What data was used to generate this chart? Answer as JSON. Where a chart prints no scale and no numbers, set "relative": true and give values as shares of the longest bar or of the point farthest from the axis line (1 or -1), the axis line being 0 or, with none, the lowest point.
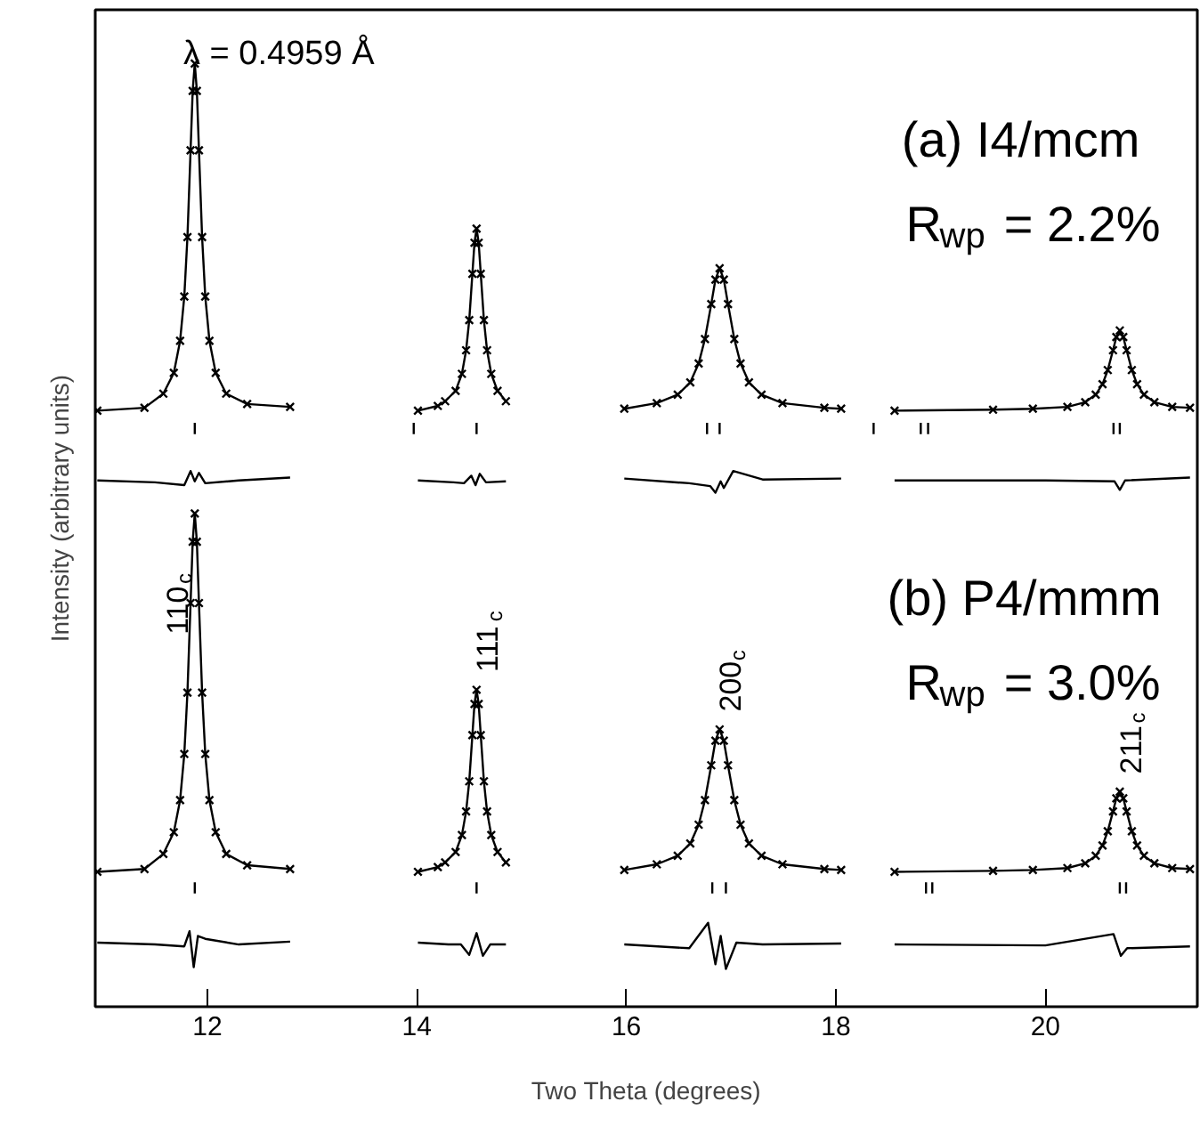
{
  "chart_data": {
    "type": "line",
    "relative": true,
    "xlabel": "Two Theta (degrees)",
    "ylabel": "Intensity (arbitrary units)",
    "xlim": [
      10.93,
      21.45
    ],
    "xticks": [
      12,
      14,
      16,
      18,
      20
    ],
    "tick_labels": "x",
    "annotations": [
      "λ = 0.4959 Å",
      "(a) I4/mcm",
      "R$_{wp}$ = 2.2%",
      "(b) P4/mmm",
      "R$_{wp}$ = 3.0%",
      {
        "text": "110$_{c}$",
        "x": 11.88,
        "y": 0.523
      },
      {
        "text": "111$_{c}$",
        "x": 14.57,
        "y": 0.336
      },
      {
        "text": "200$_{c}$",
        "x": 16.89,
        "y": 0.294
      },
      {
        "text": "211$_{c}$",
        "x": 20.71,
        "y": 0.228
      }
    ],
    "series": [
      {
        "type": "scatter",
        "marker": "cross",
        "color": "#000000",
        "x": [
          10.95,
          11.4,
          11.58,
          11.68,
          11.74,
          11.78,
          11.81,
          11.84,
          11.86,
          11.88,
          11.9,
          11.92,
          11.95,
          11.98,
          12.02,
          12.08,
          12.18,
          12.38,
          12.79,
          13.4,
          14.01,
          14.2,
          14.27,
          14.37,
          14.43,
          14.47,
          14.5,
          14.53,
          14.55,
          14.57,
          14.59,
          14.61,
          14.64,
          14.67,
          14.71,
          14.77,
          14.85,
          15.4,
          15.98,
          16.29,
          16.49,
          16.61,
          16.69,
          16.75,
          16.81,
          16.85,
          16.89,
          16.93,
          16.97,
          17.03,
          17.09,
          17.17,
          17.29,
          17.49,
          17.89,
          18.05,
          18.3,
          18.56,
          19.5,
          19.88,
          20.21,
          20.38,
          20.48,
          20.545,
          20.595,
          20.645,
          20.677,
          20.71,
          20.743,
          20.775,
          20.825,
          20.875,
          20.94,
          21.04,
          21.21,
          21.38
        ],
        "values": [
          0.632,
          0.635,
          0.65,
          0.672,
          0.706,
          0.753,
          0.816,
          0.908,
          0.971,
          1.0,
          0.971,
          0.908,
          0.816,
          0.753,
          0.706,
          0.672,
          0.65,
          0.639,
          0.636,
          null,
          0.632,
          0.637,
          0.642,
          0.653,
          0.671,
          0.696,
          0.728,
          0.777,
          0.81,
          0.825,
          0.81,
          0.777,
          0.728,
          0.696,
          0.671,
          0.653,
          0.642,
          null,
          0.634,
          0.64,
          0.649,
          0.662,
          0.682,
          0.708,
          0.745,
          0.771,
          0.783,
          0.771,
          0.745,
          0.708,
          0.682,
          0.662,
          0.649,
          0.64,
          0.635,
          0.634,
          null,
          0.632,
          0.633,
          0.634,
          0.636,
          0.641,
          0.649,
          0.66,
          0.675,
          0.696,
          0.71,
          0.717,
          0.71,
          0.696,
          0.675,
          0.66,
          0.649,
          0.641,
          0.636,
          0.635
        ]
      },
      {
        "type": "line",
        "color": "#000000",
        "x": [
          10.95,
          11.4,
          11.58,
          11.68,
          11.74,
          11.78,
          11.81,
          11.84,
          11.86,
          11.88,
          11.9,
          11.92,
          11.95,
          11.98,
          12.02,
          12.08,
          12.18,
          12.38,
          12.79,
          13.4,
          14.01,
          14.2,
          14.27,
          14.37,
          14.43,
          14.47,
          14.5,
          14.53,
          14.55,
          14.57,
          14.59,
          14.61,
          14.64,
          14.67,
          14.71,
          14.77,
          14.85,
          15.4,
          15.98,
          16.29,
          16.49,
          16.61,
          16.69,
          16.75,
          16.81,
          16.85,
          16.89,
          16.93,
          16.97,
          17.03,
          17.09,
          17.17,
          17.29,
          17.49,
          17.89,
          18.05,
          18.3,
          18.56,
          19.5,
          19.88,
          20.21,
          20.38,
          20.48,
          20.545,
          20.595,
          20.645,
          20.677,
          20.71,
          20.743,
          20.775,
          20.825,
          20.875,
          20.94,
          21.04,
          21.21,
          21.38
        ],
        "values": [
          0.632,
          0.635,
          0.65,
          0.672,
          0.706,
          0.753,
          0.816,
          0.908,
          0.971,
          1.0,
          0.971,
          0.908,
          0.816,
          0.753,
          0.706,
          0.672,
          0.65,
          0.639,
          0.636,
          null,
          0.632,
          0.637,
          0.642,
          0.653,
          0.671,
          0.696,
          0.728,
          0.777,
          0.81,
          0.825,
          0.81,
          0.777,
          0.728,
          0.696,
          0.671,
          0.653,
          0.642,
          null,
          0.634,
          0.64,
          0.649,
          0.662,
          0.682,
          0.708,
          0.745,
          0.771,
          0.783,
          0.771,
          0.745,
          0.708,
          0.682,
          0.662,
          0.649,
          0.64,
          0.635,
          0.634,
          null,
          0.632,
          0.633,
          0.634,
          0.636,
          0.641,
          0.649,
          0.66,
          0.675,
          0.696,
          0.71,
          0.717,
          0.71,
          0.696,
          0.675,
          0.66,
          0.649,
          0.641,
          0.636,
          0.635
        ]
      },
      {
        "color": "#000000",
        "x": [
          11.88,
          11.88,
          null,
          13.97,
          13.97,
          null,
          14.57,
          14.57,
          null,
          16.77,
          16.77,
          null,
          16.89,
          16.89,
          null,
          18.36,
          18.36,
          null,
          18.81,
          18.81,
          null,
          18.88,
          18.88,
          null,
          20.65,
          20.65,
          null,
          20.71,
          20.71
        ],
        "values": [
          0.607,
          0.619,
          null,
          0.607,
          0.619,
          null,
          0.607,
          0.619,
          null,
          0.607,
          0.619,
          null,
          0.607,
          0.619,
          null,
          0.607,
          0.619,
          null,
          0.607,
          0.619,
          null,
          0.607,
          0.619,
          null,
          0.607,
          0.619,
          null,
          0.607,
          0.619
        ]
      },
      {
        "color": "#000000",
        "x": [
          10.95,
          11.5,
          11.78,
          11.84,
          11.88,
          11.92,
          11.98,
          12.3,
          12.79,
          13.4,
          14.01,
          14.35,
          14.45,
          14.52,
          14.56,
          14.6,
          14.66,
          14.85,
          15.4,
          15.98,
          16.6,
          16.8,
          16.85,
          16.9,
          16.93,
          17.02,
          17.3,
          18.05,
          18.3,
          18.56,
          20.0,
          20.66,
          20.71,
          20.76,
          21.38
        ],
        "values": [
          0.558,
          0.556,
          0.553,
          0.568,
          0.557,
          0.566,
          0.555,
          0.558,
          0.561,
          null,
          0.558,
          0.556,
          0.555,
          0.563,
          0.553,
          0.565,
          0.556,
          0.557,
          null,
          0.56,
          0.555,
          0.552,
          0.545,
          0.557,
          0.55,
          0.568,
          0.559,
          0.56,
          null,
          0.558,
          0.558,
          0.557,
          0.548,
          0.558,
          0.561
        ]
      },
      {
        "type": "scatter",
        "marker": "cross",
        "color": "#000000",
        "x": [
          10.95,
          11.4,
          11.58,
          11.68,
          11.74,
          11.78,
          11.81,
          11.84,
          11.86,
          11.88,
          11.9,
          11.92,
          11.95,
          11.98,
          12.02,
          12.08,
          12.18,
          12.38,
          12.79,
          13.4,
          14.01,
          14.2,
          14.27,
          14.37,
          14.43,
          14.47,
          14.5,
          14.53,
          14.55,
          14.57,
          14.59,
          14.61,
          14.64,
          14.67,
          14.71,
          14.77,
          14.85,
          15.4,
          15.98,
          16.29,
          16.49,
          16.61,
          16.69,
          16.75,
          16.81,
          16.85,
          16.89,
          16.93,
          16.97,
          17.03,
          17.09,
          17.17,
          17.29,
          17.49,
          17.89,
          18.05,
          18.3,
          18.56,
          19.5,
          19.88,
          20.21,
          20.38,
          20.48,
          20.545,
          20.595,
          20.645,
          20.677,
          20.71,
          20.743,
          20.775,
          20.825,
          20.875,
          20.94,
          21.04,
          21.21,
          21.38
        ],
        "values": [
          0.143,
          0.146,
          0.162,
          0.185,
          0.219,
          0.268,
          0.333,
          0.428,
          0.493,
          0.523,
          0.493,
          0.428,
          0.333,
          0.268,
          0.219,
          0.185,
          0.162,
          0.15,
          0.146,
          null,
          0.143,
          0.148,
          0.153,
          0.164,
          0.182,
          0.207,
          0.239,
          0.288,
          0.321,
          0.336,
          0.321,
          0.288,
          0.239,
          0.207,
          0.182,
          0.164,
          0.153,
          null,
          0.145,
          0.151,
          0.16,
          0.173,
          0.193,
          0.219,
          0.256,
          0.282,
          0.294,
          0.282,
          0.256,
          0.219,
          0.193,
          0.173,
          0.16,
          0.151,
          0.146,
          0.145,
          null,
          0.143,
          0.144,
          0.145,
          0.147,
          0.152,
          0.16,
          0.171,
          0.186,
          0.207,
          0.221,
          0.228,
          0.221,
          0.207,
          0.186,
          0.171,
          0.16,
          0.152,
          0.147,
          0.146
        ]
      },
      {
        "type": "line",
        "color": "#000000",
        "x": [
          10.95,
          11.4,
          11.58,
          11.68,
          11.74,
          11.78,
          11.81,
          11.84,
          11.86,
          11.88,
          11.9,
          11.92,
          11.95,
          11.98,
          12.02,
          12.08,
          12.18,
          12.38,
          12.79,
          13.4,
          14.01,
          14.2,
          14.27,
          14.37,
          14.43,
          14.47,
          14.5,
          14.53,
          14.55,
          14.57,
          14.59,
          14.61,
          14.64,
          14.67,
          14.71,
          14.77,
          14.85,
          15.4,
          15.98,
          16.29,
          16.49,
          16.61,
          16.69,
          16.75,
          16.81,
          16.85,
          16.89,
          16.93,
          16.97,
          17.03,
          17.09,
          17.17,
          17.29,
          17.49,
          17.89,
          18.05,
          18.3,
          18.56,
          19.5,
          19.88,
          20.21,
          20.38,
          20.48,
          20.545,
          20.595,
          20.645,
          20.677,
          20.71,
          20.743,
          20.775,
          20.825,
          20.875,
          20.94,
          21.04,
          21.21,
          21.38
        ],
        "values": [
          0.143,
          0.146,
          0.162,
          0.185,
          0.219,
          0.268,
          0.333,
          0.428,
          0.493,
          0.523,
          0.493,
          0.428,
          0.333,
          0.268,
          0.219,
          0.185,
          0.162,
          0.15,
          0.146,
          null,
          0.143,
          0.148,
          0.153,
          0.164,
          0.182,
          0.207,
          0.239,
          0.288,
          0.321,
          0.336,
          0.321,
          0.288,
          0.239,
          0.207,
          0.182,
          0.164,
          0.153,
          null,
          0.145,
          0.151,
          0.16,
          0.173,
          0.193,
          0.219,
          0.256,
          0.282,
          0.294,
          0.282,
          0.256,
          0.219,
          0.193,
          0.173,
          0.16,
          0.151,
          0.146,
          0.145,
          null,
          0.143,
          0.144,
          0.145,
          0.147,
          0.152,
          0.16,
          0.171,
          0.186,
          0.207,
          0.221,
          0.228,
          0.221,
          0.207,
          0.186,
          0.171,
          0.16,
          0.152,
          0.147,
          0.146
        ]
      },
      {
        "color": "#000000",
        "x": [
          11.88,
          11.88,
          null,
          14.57,
          14.57,
          null,
          16.82,
          16.82,
          null,
          16.95,
          16.95,
          null,
          18.86,
          18.86,
          null,
          18.92,
          18.92,
          null,
          20.71,
          20.71,
          null,
          20.77,
          20.77
        ],
        "values": [
          0.12,
          0.132,
          null,
          0.12,
          0.132,
          null,
          0.12,
          0.132,
          null,
          0.12,
          0.132,
          null,
          0.12,
          0.132,
          null,
          0.12,
          0.132,
          null,
          0.12,
          0.132,
          null,
          0.12,
          0.132
        ]
      },
      {
        "color": "#000000",
        "x": [
          10.95,
          11.5,
          11.78,
          11.83,
          11.87,
          11.91,
          11.98,
          12.3,
          12.79,
          13.4,
          14.01,
          14.3,
          14.42,
          14.5,
          14.57,
          14.63,
          14.7,
          14.85,
          15.4,
          15.98,
          16.6,
          16.78,
          16.85,
          16.9,
          16.95,
          17.05,
          17.3,
          18.05,
          18.3,
          18.56,
          20.0,
          20.65,
          20.72,
          20.78,
          21.38
        ],
        "values": [
          0.068,
          0.066,
          0.064,
          0.08,
          0.042,
          0.075,
          0.072,
          0.066,
          0.069,
          null,
          0.068,
          0.066,
          0.066,
          0.055,
          0.078,
          0.054,
          0.066,
          0.066,
          null,
          0.066,
          0.062,
          0.089,
          0.045,
          0.075,
          0.04,
          0.068,
          0.066,
          0.067,
          null,
          0.066,
          0.065,
          0.077,
          0.054,
          0.062,
          0.064
        ]
      }
    ]
  }
}
